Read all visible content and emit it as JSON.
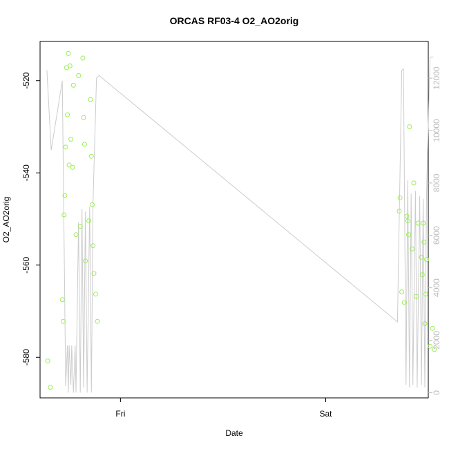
{
  "chart_data": {
    "type": "scatter",
    "title": "ORCAS RF03-4 O2_AO2orig",
    "xlabel": "Date",
    "ylabel": "O2_AO2orig",
    "x_ticks": [
      {
        "label": "Fri",
        "t": 24.0
      },
      {
        "label": "Sat",
        "t": 48.0
      }
    ],
    "xlim": [
      14.6,
      60.0
    ],
    "ylim_left": [
      -588.8,
      -511.5
    ],
    "yticks_left": [
      -520,
      -540,
      -560,
      -580
    ],
    "ylim_right": [
      -200,
      13400
    ],
    "yticks_right": [
      0,
      2000,
      4000,
      6000,
      8000,
      10000,
      12000
    ],
    "colors": {
      "points": "#99ee55",
      "line": "#cccccc"
    },
    "series": [
      {
        "axis": "left",
        "style": "points",
        "points": [
          [
            15.5,
            -580.8
          ],
          [
            15.8,
            -586.5
          ],
          [
            17.2,
            -567.5
          ],
          [
            17.3,
            -572.2
          ],
          [
            17.4,
            -549.1
          ],
          [
            17.5,
            -544.9
          ],
          [
            17.6,
            -534.4
          ],
          [
            17.7,
            -517.2
          ],
          [
            17.8,
            -527.4
          ],
          [
            17.9,
            -514.1
          ],
          [
            18.0,
            -538.3
          ],
          [
            18.1,
            -516.8
          ],
          [
            18.2,
            -532.7
          ],
          [
            18.4,
            -538.8
          ],
          [
            18.5,
            -521.0
          ],
          [
            18.8,
            -553.4
          ],
          [
            19.1,
            -518.9
          ],
          [
            19.3,
            -551.6
          ],
          [
            19.6,
            -515.1
          ],
          [
            19.7,
            -528.0
          ],
          [
            19.8,
            -533.8
          ],
          [
            19.9,
            -559.1
          ],
          [
            20.3,
            -550.4
          ],
          [
            20.5,
            -524.1
          ],
          [
            20.6,
            -536.4
          ],
          [
            20.7,
            -546.9
          ],
          [
            20.8,
            -555.8
          ],
          [
            20.9,
            -561.8
          ],
          [
            21.1,
            -566.3
          ],
          [
            21.3,
            -572.2
          ],
          [
            56.6,
            -548.3
          ],
          [
            56.7,
            -545.4
          ],
          [
            56.9,
            -565.8
          ],
          [
            57.2,
            -568.1
          ],
          [
            57.5,
            -549.4
          ],
          [
            57.6,
            -550.4
          ],
          [
            57.7,
            -553.4
          ],
          [
            57.8,
            -530.0
          ],
          [
            58.1,
            -556.5
          ],
          [
            58.3,
            -542.2
          ],
          [
            58.6,
            -566.8
          ],
          [
            58.8,
            -550.9
          ],
          [
            59.2,
            -558.3
          ],
          [
            59.3,
            -562.1
          ],
          [
            59.4,
            -550.9
          ],
          [
            59.5,
            -555.0
          ],
          [
            59.6,
            -572.7
          ],
          [
            59.7,
            -566.3
          ],
          [
            59.8,
            -558.8
          ],
          [
            60.2,
            -577.6
          ],
          [
            60.5,
            -573.7
          ],
          [
            60.7,
            -578.3
          ]
        ]
      },
      {
        "axis": "right",
        "style": "line",
        "points": [
          [
            15.4,
            12300
          ],
          [
            15.9,
            9250
          ],
          [
            17.2,
            11900
          ],
          [
            17.6,
            250
          ],
          [
            17.8,
            1800
          ],
          [
            17.9,
            0
          ],
          [
            18.0,
            1800
          ],
          [
            18.2,
            300
          ],
          [
            18.3,
            1800
          ],
          [
            18.5,
            0
          ],
          [
            18.7,
            1800
          ],
          [
            18.8,
            0
          ],
          [
            19.1,
            6500
          ],
          [
            19.3,
            0
          ],
          [
            19.5,
            7000
          ],
          [
            19.7,
            200
          ],
          [
            19.9,
            6900
          ],
          [
            20.1,
            0
          ],
          [
            20.4,
            7100
          ],
          [
            20.6,
            0
          ],
          [
            20.8,
            7300
          ],
          [
            21.2,
            12000
          ],
          [
            21.5,
            12100
          ],
          [
            56.4,
            2700
          ],
          [
            56.9,
            12300
          ],
          [
            57.1,
            12350
          ],
          [
            57.4,
            300
          ],
          [
            57.6,
            8100
          ],
          [
            57.8,
            200
          ],
          [
            58.0,
            7600
          ],
          [
            58.2,
            300
          ],
          [
            58.5,
            7700
          ],
          [
            58.7,
            200
          ],
          [
            59.0,
            7500
          ],
          [
            59.2,
            300
          ],
          [
            59.4,
            7400
          ],
          [
            59.6,
            200
          ],
          [
            59.8,
            7600
          ],
          [
            60.2,
            12800
          ],
          [
            60.6,
            12800
          ]
        ]
      }
    ]
  }
}
